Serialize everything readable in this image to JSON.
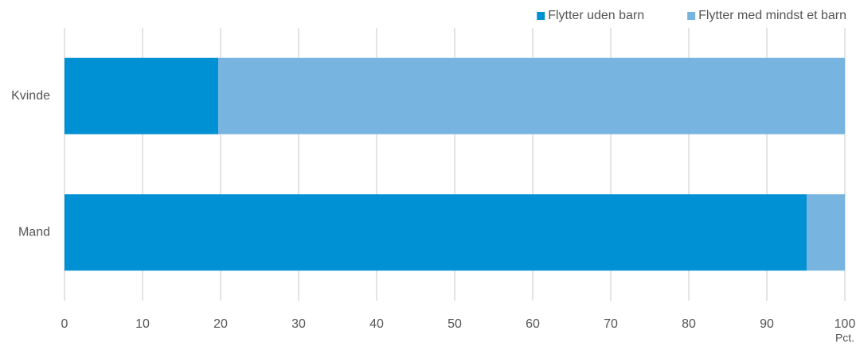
{
  "chart_data": {
    "type": "bar",
    "orientation": "horizontal",
    "stacked": true,
    "categories": [
      "Kvinde",
      "Mand"
    ],
    "series": [
      {
        "name": "Flytter uden barn",
        "color": "#0090d4",
        "values": [
          19.7,
          95.1
        ]
      },
      {
        "name": "Flytter med mindst et barn",
        "color": "#78b4e0",
        "values": [
          80.3,
          4.9
        ]
      }
    ],
    "xlim": [
      0,
      100
    ],
    "xticks": [
      0,
      10,
      20,
      30,
      40,
      50,
      60,
      70,
      80,
      90,
      100
    ],
    "xlabel": "Pct.",
    "grid": true,
    "legend": "top-right"
  }
}
